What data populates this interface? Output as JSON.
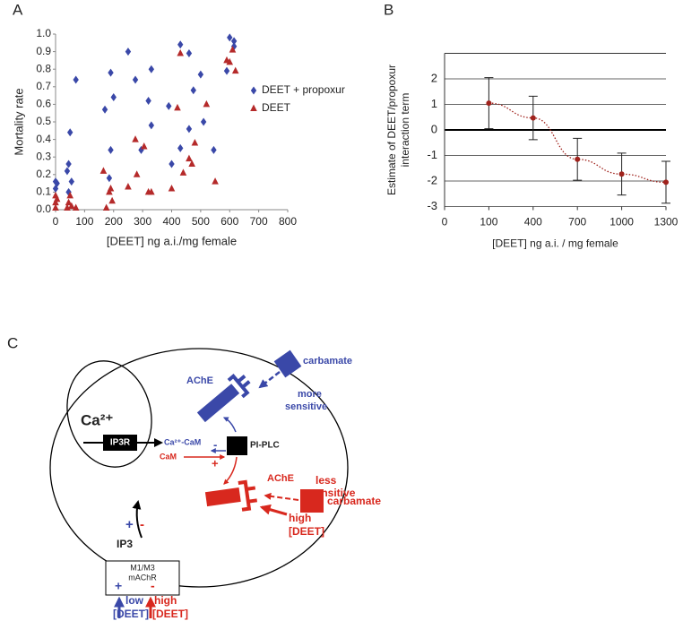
{
  "panel_labels": [
    "A",
    "B",
    "C"
  ],
  "chart_data": [
    {
      "type": "scatter",
      "x_label": "[DEET] ng a.i./mg female",
      "y_label": "Mortality rate",
      "xlim": [
        0,
        800
      ],
      "xticks": [
        0,
        100,
        200,
        300,
        400,
        500,
        600,
        700,
        800
      ],
      "ylim": [
        0,
        1
      ],
      "yticks": [
        {
          "value": 0,
          "label": "0.0"
        },
        0.1,
        0.2,
        0.3,
        0.4,
        0.5,
        0.6,
        0.7,
        0.8,
        0.9,
        {
          "value": 1,
          "label": "1.0"
        }
      ],
      "legend": "right",
      "series": [
        {
          "name": "DEET + propoxur",
          "color": "#3a48a8",
          "marker": "diamond",
          "x": [
            0,
            0,
            5,
            40,
            45,
            45,
            50,
            55,
            70,
            170,
            185,
            190,
            190,
            200,
            250,
            275,
            295,
            320,
            330,
            330,
            390,
            400,
            430,
            430,
            460,
            460,
            475,
            500,
            510,
            545,
            590,
            600,
            615,
            615
          ],
          "values": [
            0.16,
            0.12,
            0.15,
            0.22,
            0.1,
            0.26,
            0.44,
            0.16,
            0.74,
            0.57,
            0.18,
            0.34,
            0.78,
            0.64,
            0.9,
            0.74,
            0.34,
            0.62,
            0.48,
            0.8,
            0.59,
            0.26,
            0.35,
            0.94,
            0.89,
            0.46,
            0.68,
            0.77,
            0.5,
            0.34,
            0.79,
            0.98,
            0.96,
            0.93
          ]
        },
        {
          "name": "DEET",
          "color": "#b52a2a",
          "marker": "triangle",
          "x": [
            0,
            0,
            0,
            5,
            40,
            45,
            50,
            55,
            70,
            165,
            175,
            185,
            190,
            195,
            250,
            275,
            280,
            305,
            320,
            330,
            400,
            420,
            430,
            440,
            460,
            470,
            480,
            520,
            550,
            590,
            600,
            610,
            620
          ],
          "values": [
            0.08,
            0.04,
            0.01,
            0.06,
            0.01,
            0.04,
            0.08,
            0.02,
            0.01,
            0.22,
            0.01,
            0.1,
            0.12,
            0.05,
            0.13,
            0.4,
            0.2,
            0.36,
            0.1,
            0.1,
            0.12,
            0.58,
            0.89,
            0.21,
            0.29,
            0.26,
            0.38,
            0.6,
            0.16,
            0.85,
            0.84,
            0.91,
            0.79
          ]
        }
      ]
    },
    {
      "type": "line",
      "x_label": "[DEET] ng a.i. / mg female",
      "y_label": [
        "Estimate of DEET/propoxur",
        "interaction term"
      ],
      "categories": [
        "0",
        "100",
        "400",
        "700",
        "1000",
        "1300"
      ],
      "values": [
        null,
        1.05,
        0.47,
        -1.15,
        -1.73,
        -2.05
      ],
      "errors": [
        null,
        1.0,
        0.85,
        0.82,
        0.82,
        0.82
      ],
      "color": "#a0221c",
      "line_style": "dotted",
      "ylim": [
        -3,
        3
      ],
      "yticks": [
        -3,
        -2,
        -1,
        0,
        1,
        2
      ],
      "grid": true
    }
  ],
  "diagram": {
    "ca": "Ca²⁺",
    "ip3r": "IP3R",
    "ca_cam": "Ca²⁺-CaM",
    "cam": "CaM",
    "pi_plc": "PI-PLC",
    "ip3": "IP3",
    "receptor": [
      "M1/M3",
      "mAChR"
    ],
    "ache_blue": "AChE",
    "carbamate_blue": "carbamate",
    "more_sensitive": [
      "more",
      "sensitive"
    ],
    "ache_red": "AChE",
    "carbamate_red": "carbamate",
    "less_sensitive": [
      "less",
      "sensitive"
    ],
    "high_deet_red": [
      "high",
      "[DEET]"
    ],
    "low_deet": [
      "low",
      "[DEET]"
    ],
    "high_deet": [
      "high",
      "[DEET]"
    ],
    "signs": [
      "-",
      "+",
      "+",
      "-",
      "+",
      "-"
    ]
  }
}
